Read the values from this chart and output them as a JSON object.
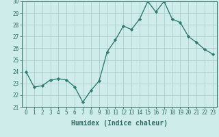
{
  "x": [
    0,
    1,
    2,
    3,
    4,
    5,
    6,
    7,
    8,
    9,
    10,
    11,
    12,
    13,
    14,
    15,
    16,
    17,
    18,
    19,
    20,
    21,
    22,
    23
  ],
  "y": [
    24,
    22.7,
    22.8,
    23.3,
    23.4,
    23.3,
    22.7,
    21.4,
    22.4,
    23.2,
    25.7,
    26.7,
    27.9,
    27.6,
    28.5,
    30.0,
    29.1,
    30.0,
    28.5,
    28.2,
    27.0,
    26.5,
    25.9,
    25.5
  ],
  "line_color": "#2e7d6e",
  "marker": "D",
  "marker_size": 2.2,
  "bg_color": "#cdecea",
  "grid_color": "#b0ceca",
  "xlabel": "Humidex (Indice chaleur)",
  "ylim": [
    21,
    30
  ],
  "yticks": [
    21,
    22,
    23,
    24,
    25,
    26,
    27,
    28,
    29,
    30
  ],
  "xticks": [
    0,
    1,
    2,
    3,
    4,
    5,
    6,
    7,
    8,
    9,
    10,
    11,
    12,
    13,
    14,
    15,
    16,
    17,
    18,
    19,
    20,
    21,
    22,
    23
  ],
  "tick_fontsize": 5.5,
  "xlabel_fontsize": 7.0,
  "line_width": 1.0,
  "tick_color": "#2e6b60",
  "spine_color": "#2e6b60"
}
